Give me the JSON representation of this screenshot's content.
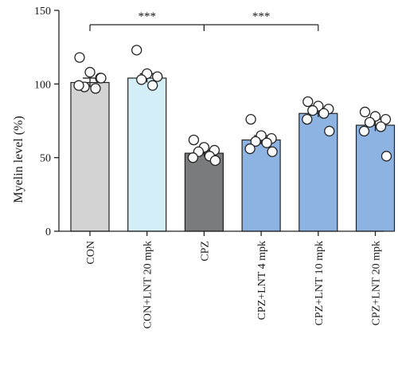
{
  "chart_data": {
    "type": "bar",
    "ylabel": "Myelin level (%)",
    "ylim": [
      0,
      150
    ],
    "yticks": [
      0,
      50,
      100,
      150
    ],
    "grid": false,
    "categories": [
      "CON",
      "CON+LNT 20 mpk",
      "CPZ",
      "CPZ+LNT 4 mpk",
      "CPZ+LNT 10 mpk",
      "CPZ+LNT 20 mpk"
    ],
    "values": [
      101,
      104,
      53,
      62,
      80,
      72
    ],
    "errors": [
      3,
      3,
      2,
      3,
      2.5,
      4
    ],
    "bar_colors": [
      "#d3d3d3",
      "#d3eef7",
      "#7a7b7e",
      "#8db3e2",
      "#8db3e2",
      "#8db3e2"
    ],
    "points": [
      [
        118,
        108,
        104,
        98,
        97,
        99,
        104
      ],
      [
        123,
        107,
        105,
        103,
        99
      ],
      [
        62,
        57,
        55,
        54,
        51,
        50,
        48
      ],
      [
        76,
        65,
        63,
        61,
        60,
        56,
        54
      ],
      [
        88,
        85,
        83,
        82,
        80,
        76,
        68
      ],
      [
        81,
        78,
        76,
        74,
        71,
        68,
        51
      ]
    ],
    "significance": [
      {
        "from": 0,
        "to": 2,
        "label": "***"
      },
      {
        "from": 2,
        "to": 4,
        "label": "***"
      }
    ]
  }
}
